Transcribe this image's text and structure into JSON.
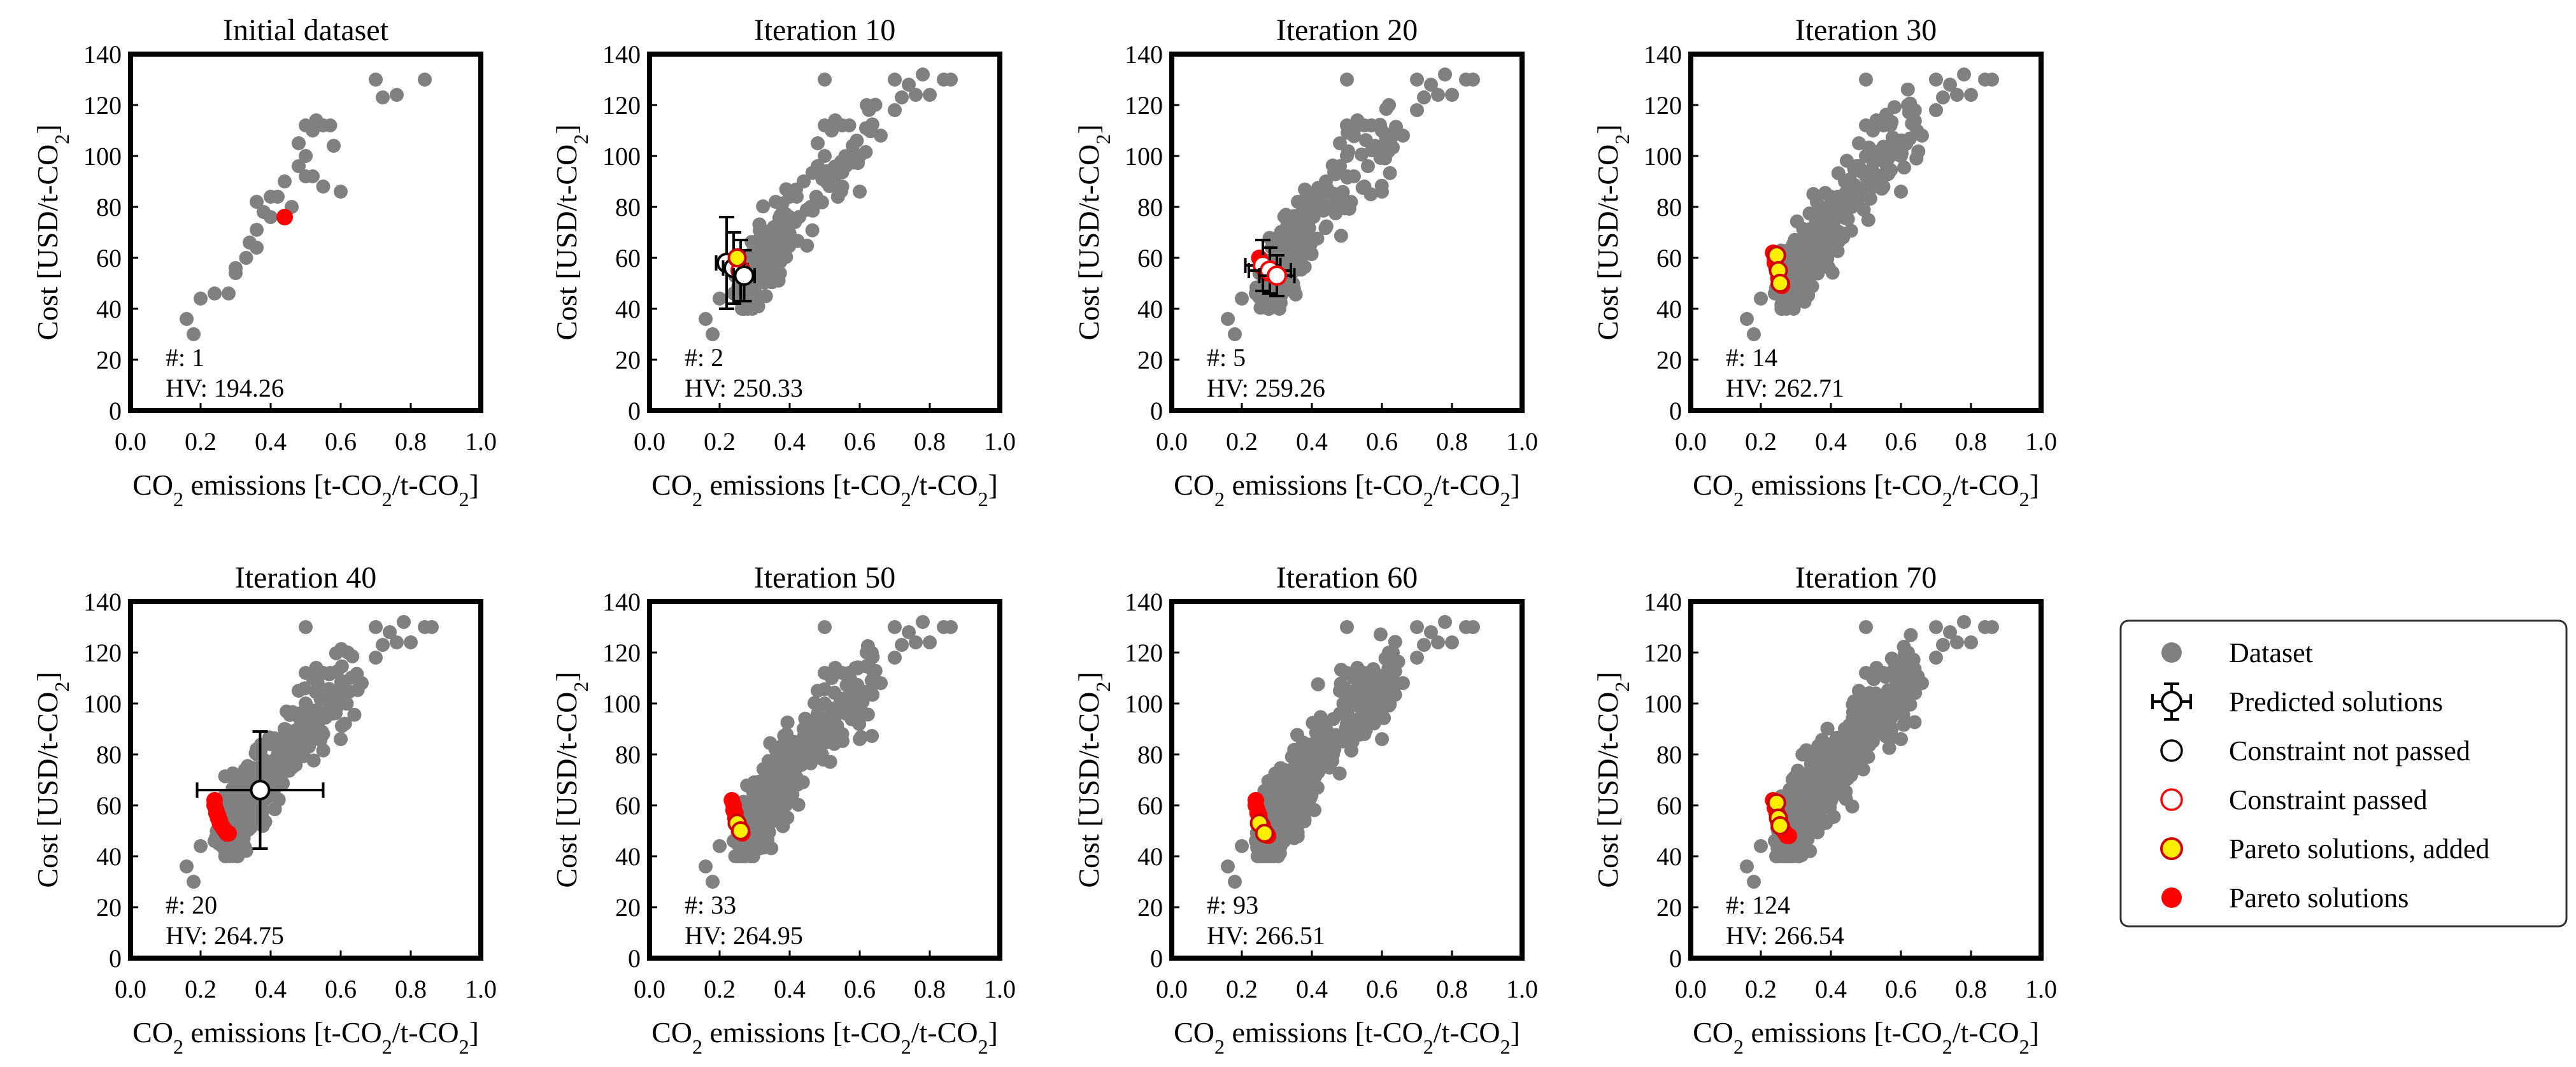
{
  "figure": {
    "legend": {
      "entries": [
        {
          "key": "dataset",
          "label": "Dataset"
        },
        {
          "key": "predicted",
          "label": "Predicted solutions"
        },
        {
          "key": "not_passed",
          "label": "Constraint not passed"
        },
        {
          "key": "passed",
          "label": "Constraint passed"
        },
        {
          "key": "pareto_added",
          "label": "Pareto solutions, added"
        },
        {
          "key": "pareto",
          "label": "Pareto solutions"
        }
      ]
    },
    "colors": {
      "dataset": "#808080",
      "pareto": "#ff0000",
      "added_fill": "#ffee00",
      "added_edge": "#cc0000",
      "passed_edge": "#ff0000",
      "axis": "#000000"
    }
  },
  "chart_data": [
    {
      "type": "scatter",
      "title": "Initial dataset",
      "xlabel_main": "CO",
      "xlabel_sub": "2",
      "xlabel_rest": " emissions [t-CO",
      "xlabel_sub2": "2",
      "xlabel_end": "/t-CO",
      "xlabel_sub3": "2",
      "xlabel_close": "]",
      "ylabel_main": "Cost [USD/t-CO",
      "ylabel_sub": "2",
      "ylabel_close": "]",
      "xlim": [
        0,
        1
      ],
      "ylim": [
        0,
        140
      ],
      "xticks": [
        "0.0",
        "0.2",
        "0.4",
        "0.6",
        "0.8",
        "1.0"
      ],
      "yticks": [
        "0",
        "20",
        "40",
        "60",
        "80",
        "100",
        "120",
        "140"
      ],
      "count_label": "#: 1",
      "hv_label": "HV: 194.26",
      "dataset_count": 35,
      "pareto": [
        [
          0.44,
          76
        ]
      ],
      "pareto_added": [],
      "predicted": []
    },
    {
      "type": "scatter",
      "title": "Iteration 10",
      "xlabel_main": "CO",
      "xlabel_sub": "2",
      "xlabel_rest": " emissions [t-CO",
      "xlabel_sub2": "2",
      "xlabel_end": "/t-CO",
      "xlabel_sub3": "2",
      "xlabel_close": "]",
      "ylabel_main": "Cost [USD/t-CO",
      "ylabel_sub": "2",
      "ylabel_close": "]",
      "xlim": [
        0,
        1
      ],
      "ylim": [
        0,
        140
      ],
      "xticks": [
        "0.0",
        "0.2",
        "0.4",
        "0.6",
        "0.8",
        "1.0"
      ],
      "yticks": [
        "0",
        "20",
        "40",
        "60",
        "80",
        "100",
        "120",
        "140"
      ],
      "count_label": "#: 2",
      "hv_label": "HV: 250.33",
      "dataset_count": 230,
      "pareto": [
        [
          0.24,
          58
        ]
      ],
      "pareto_added": [
        [
          0.25,
          60
        ]
      ],
      "predicted": [
        {
          "x": 0.22,
          "y": 58,
          "xerr": 0.03,
          "yerr": 18,
          "passed": false
        },
        {
          "x": 0.24,
          "y": 56,
          "xerr": 0.03,
          "yerr": 14,
          "passed": false
        },
        {
          "x": 0.26,
          "y": 55,
          "xerr": 0.02,
          "yerr": 12,
          "passed": true
        },
        {
          "x": 0.27,
          "y": 53,
          "xerr": 0.03,
          "yerr": 10,
          "passed": false
        }
      ]
    },
    {
      "type": "scatter",
      "title": "Iteration 20",
      "xlabel_main": "CO",
      "xlabel_sub": "2",
      "xlabel_rest": " emissions [t-CO",
      "xlabel_sub2": "2",
      "xlabel_end": "/t-CO",
      "xlabel_sub3": "2",
      "xlabel_close": "]",
      "ylabel_main": "Cost [USD/t-CO",
      "ylabel_sub": "2",
      "ylabel_close": "]",
      "xlim": [
        0,
        1
      ],
      "ylim": [
        0,
        140
      ],
      "xticks": [
        "0.0",
        "0.2",
        "0.4",
        "0.6",
        "0.8",
        "1.0"
      ],
      "yticks": [
        "0",
        "20",
        "40",
        "60",
        "80",
        "100",
        "120",
        "140"
      ],
      "count_label": "#: 5",
      "hv_label": "HV: 259.26",
      "dataset_count": 330,
      "pareto": [
        [
          0.25,
          60
        ],
        [
          0.255,
          58
        ],
        [
          0.26,
          56
        ],
        [
          0.265,
          55
        ],
        [
          0.27,
          54
        ]
      ],
      "pareto_added": [],
      "predicted": [
        {
          "x": 0.26,
          "y": 57,
          "xerr": 0.05,
          "yerr": 10,
          "passed": true
        },
        {
          "x": 0.28,
          "y": 55,
          "xerr": 0.06,
          "yerr": 9,
          "passed": true
        },
        {
          "x": 0.3,
          "y": 53,
          "xerr": 0.05,
          "yerr": 8,
          "passed": true
        }
      ]
    },
    {
      "type": "scatter",
      "title": "Iteration 30",
      "xlabel_main": "CO",
      "xlabel_sub": "2",
      "xlabel_rest": " emissions [t-CO",
      "xlabel_sub2": "2",
      "xlabel_end": "/t-CO",
      "xlabel_sub3": "2",
      "xlabel_close": "]",
      "ylabel_main": "Cost [USD/t-CO",
      "ylabel_sub": "2",
      "ylabel_close": "]",
      "xlim": [
        0,
        1
      ],
      "ylim": [
        0,
        140
      ],
      "xticks": [
        "0.0",
        "0.2",
        "0.4",
        "0.6",
        "0.8",
        "1.0"
      ],
      "yticks": [
        "0",
        "20",
        "40",
        "60",
        "80",
        "100",
        "120",
        "140"
      ],
      "count_label": "#: 14",
      "hv_label": "HV: 262.71",
      "dataset_count": 430,
      "pareto": [
        [
          0.235,
          62
        ],
        [
          0.24,
          60
        ],
        [
          0.24,
          58
        ],
        [
          0.245,
          56
        ],
        [
          0.25,
          54
        ],
        [
          0.25,
          52
        ],
        [
          0.255,
          51
        ],
        [
          0.26,
          50
        ],
        [
          0.26,
          49
        ]
      ],
      "pareto_added": [
        [
          0.245,
          61
        ],
        [
          0.25,
          55
        ],
        [
          0.255,
          50
        ]
      ],
      "predicted": []
    },
    {
      "type": "scatter",
      "title": "Iteration 40",
      "xlabel_main": "CO",
      "xlabel_sub": "2",
      "xlabel_rest": " emissions [t-CO",
      "xlabel_sub2": "2",
      "xlabel_end": "/t-CO",
      "xlabel_sub3": "2",
      "xlabel_close": "]",
      "ylabel_main": "Cost [USD/t-CO",
      "ylabel_sub": "2",
      "ylabel_close": "]",
      "xlim": [
        0,
        1
      ],
      "ylim": [
        0,
        140
      ],
      "xticks": [
        "0.0",
        "0.2",
        "0.4",
        "0.6",
        "0.8",
        "1.0"
      ],
      "yticks": [
        "0",
        "20",
        "40",
        "60",
        "80",
        "100",
        "120",
        "140"
      ],
      "count_label": "#: 20",
      "hv_label": "HV: 264.75",
      "dataset_count": 460,
      "pareto": [
        [
          0.24,
          62
        ],
        [
          0.24,
          60
        ],
        [
          0.245,
          58
        ],
        [
          0.245,
          57
        ],
        [
          0.25,
          56
        ],
        [
          0.25,
          55
        ],
        [
          0.255,
          54
        ],
        [
          0.255,
          53
        ],
        [
          0.26,
          52
        ],
        [
          0.265,
          51
        ],
        [
          0.27,
          50
        ],
        [
          0.275,
          49
        ],
        [
          0.28,
          49
        ]
      ],
      "pareto_added": [],
      "predicted": [
        {
          "x": 0.37,
          "y": 66,
          "xerr": 0.18,
          "yerr": 23,
          "passed": false
        }
      ]
    },
    {
      "type": "scatter",
      "title": "Iteration 50",
      "xlabel_main": "CO",
      "xlabel_sub": "2",
      "xlabel_rest": " emissions [t-CO",
      "xlabel_sub2": "2",
      "xlabel_end": "/t-CO",
      "xlabel_sub3": "2",
      "xlabel_close": "]",
      "ylabel_main": "Cost [USD/t-CO",
      "ylabel_sub": "2",
      "ylabel_close": "]",
      "xlim": [
        0,
        1
      ],
      "ylim": [
        0,
        140
      ],
      "xticks": [
        "0.0",
        "0.2",
        "0.4",
        "0.6",
        "0.8",
        "1.0"
      ],
      "yticks": [
        "0",
        "20",
        "40",
        "60",
        "80",
        "100",
        "120",
        "140"
      ],
      "count_label": "#: 33",
      "hv_label": "HV: 264.95",
      "dataset_count": 520,
      "pareto": [
        [
          0.235,
          62
        ],
        [
          0.24,
          60
        ],
        [
          0.24,
          58
        ],
        [
          0.245,
          57
        ],
        [
          0.245,
          55
        ],
        [
          0.25,
          54
        ],
        [
          0.25,
          53
        ],
        [
          0.255,
          52
        ],
        [
          0.26,
          51
        ],
        [
          0.26,
          50
        ],
        [
          0.265,
          49
        ]
      ],
      "pareto_added": [
        [
          0.25,
          53
        ],
        [
          0.26,
          50
        ]
      ],
      "predicted": []
    },
    {
      "type": "scatter",
      "title": "Iteration 60",
      "xlabel_main": "CO",
      "xlabel_sub": "2",
      "xlabel_rest": " emissions [t-CO",
      "xlabel_sub2": "2",
      "xlabel_end": "/t-CO",
      "xlabel_sub3": "2",
      "xlabel_close": "]",
      "ylabel_main": "Cost [USD/t-CO",
      "ylabel_sub": "2",
      "ylabel_close": "]",
      "xlim": [
        0,
        1
      ],
      "ylim": [
        0,
        140
      ],
      "xticks": [
        "0.0",
        "0.2",
        "0.4",
        "0.6",
        "0.8",
        "1.0"
      ],
      "yticks": [
        "0",
        "20",
        "40",
        "60",
        "80",
        "100",
        "120",
        "140"
      ],
      "count_label": "#: 93",
      "hv_label": "HV: 266.51",
      "dataset_count": 620,
      "pareto": [
        [
          0.24,
          62
        ],
        [
          0.24,
          60
        ],
        [
          0.245,
          58
        ],
        [
          0.245,
          57
        ],
        [
          0.25,
          56
        ],
        [
          0.25,
          55
        ],
        [
          0.255,
          53
        ],
        [
          0.26,
          52
        ],
        [
          0.26,
          51
        ],
        [
          0.265,
          50
        ],
        [
          0.27,
          49
        ],
        [
          0.275,
          48
        ]
      ],
      "pareto_added": [
        [
          0.25,
          53
        ],
        [
          0.265,
          49
        ]
      ],
      "predicted": []
    },
    {
      "type": "scatter",
      "title": "Iteration 70",
      "xlabel_main": "CO",
      "xlabel_sub": "2",
      "xlabel_rest": " emissions [t-CO",
      "xlabel_sub2": "2",
      "xlabel_end": "/t-CO",
      "xlabel_sub3": "2",
      "xlabel_close": "]",
      "ylabel_main": "Cost [USD/t-CO",
      "ylabel_sub": "2",
      "ylabel_close": "]",
      "xlim": [
        0,
        1
      ],
      "ylim": [
        0,
        140
      ],
      "xticks": [
        "0.0",
        "0.2",
        "0.4",
        "0.6",
        "0.8",
        "1.0"
      ],
      "yticks": [
        "0",
        "20",
        "40",
        "60",
        "80",
        "100",
        "120",
        "140"
      ],
      "count_label": "#: 124",
      "hv_label": "HV: 266.54",
      "dataset_count": 700,
      "pareto": [
        [
          0.235,
          62
        ],
        [
          0.24,
          61
        ],
        [
          0.24,
          59
        ],
        [
          0.245,
          58
        ],
        [
          0.245,
          57
        ],
        [
          0.25,
          56
        ],
        [
          0.25,
          55
        ],
        [
          0.255,
          54
        ],
        [
          0.255,
          53
        ],
        [
          0.26,
          52
        ],
        [
          0.26,
          51
        ],
        [
          0.265,
          50
        ],
        [
          0.27,
          49
        ],
        [
          0.275,
          48
        ],
        [
          0.28,
          48
        ]
      ],
      "pareto_added": [
        [
          0.245,
          61
        ],
        [
          0.25,
          55
        ],
        [
          0.255,
          52
        ]
      ],
      "predicted": []
    }
  ]
}
